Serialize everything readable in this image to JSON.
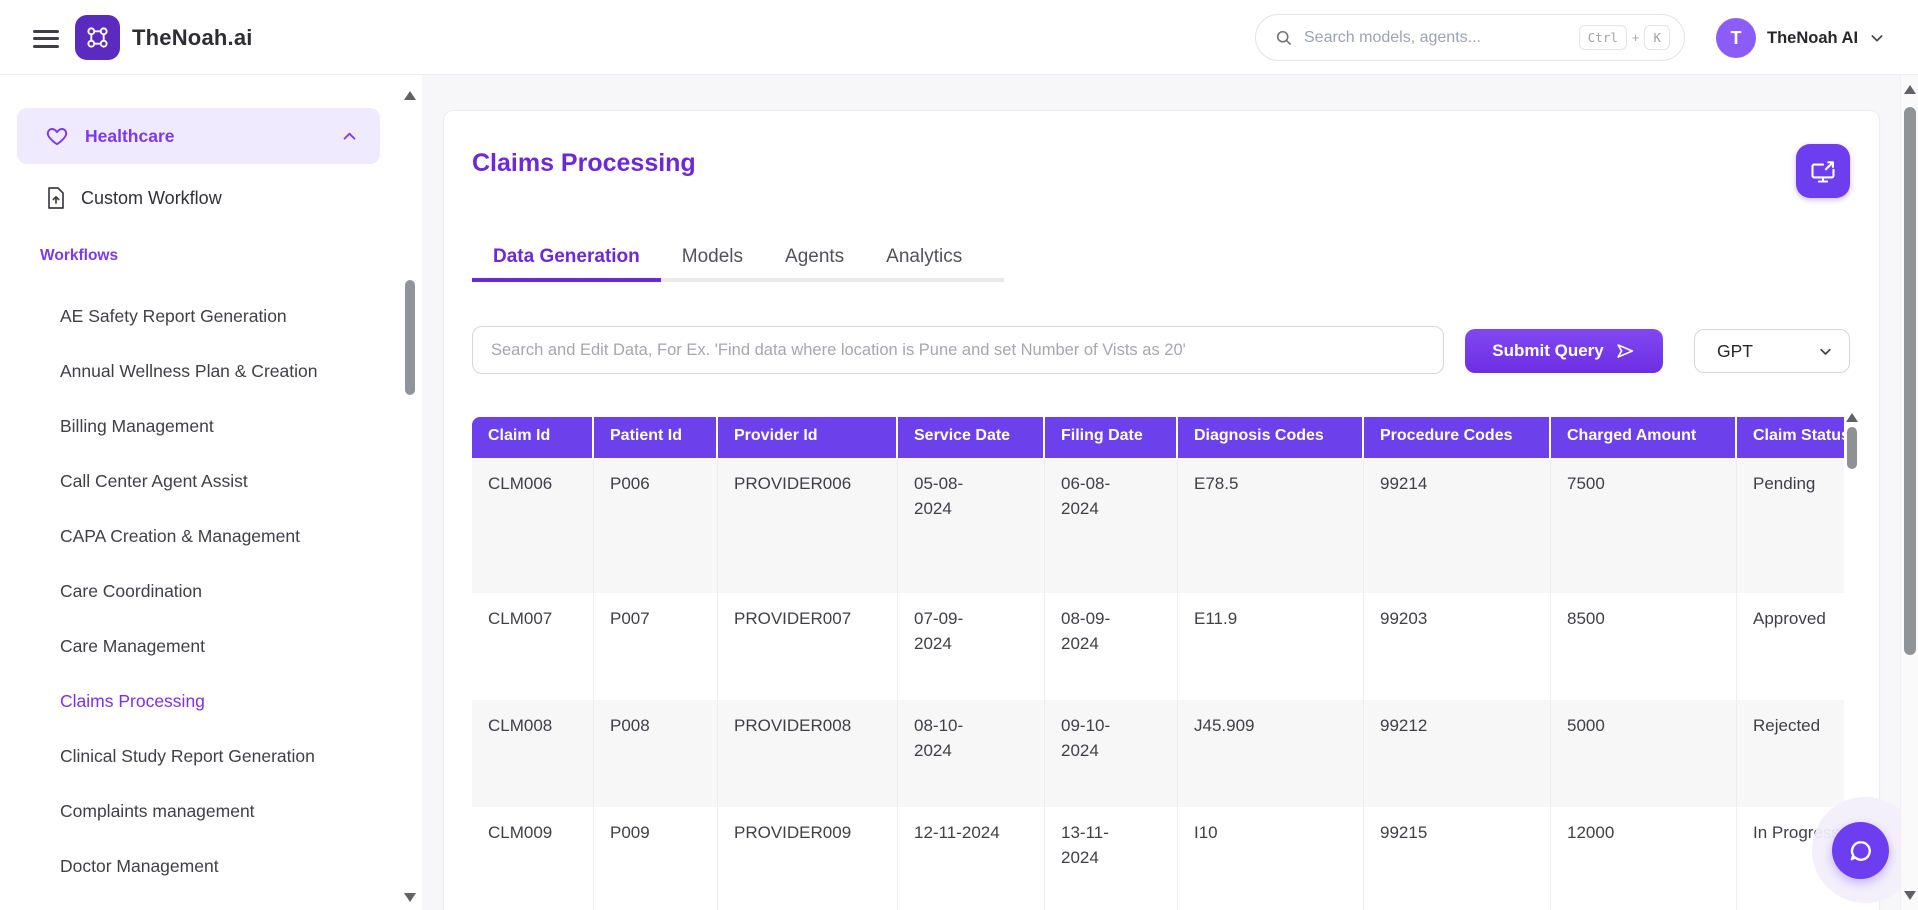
{
  "header": {
    "brand": "TheNoah.ai",
    "search": {
      "placeholder": "Search models, agents...",
      "shortcut_keys": [
        "Ctrl",
        "K"
      ],
      "shortcut_separator": "+"
    },
    "user": {
      "avatar_initial": "T",
      "name": "TheNoah AI"
    }
  },
  "sidebar": {
    "category": "Healthcare",
    "custom_workflow": "Custom Workflow",
    "section_label": "Workflows",
    "items": [
      {
        "label": "AE Safety Report Generation",
        "active": false
      },
      {
        "label": "Annual Wellness Plan & Creation",
        "active": false
      },
      {
        "label": "Billing Management",
        "active": false
      },
      {
        "label": "Call Center Agent Assist",
        "active": false
      },
      {
        "label": "CAPA Creation & Management",
        "active": false
      },
      {
        "label": "Care Coordination",
        "active": false
      },
      {
        "label": "Care Management",
        "active": false
      },
      {
        "label": "Claims Processing",
        "active": true
      },
      {
        "label": "Clinical Study Report Generation",
        "active": false
      },
      {
        "label": "Complaints management",
        "active": false
      },
      {
        "label": "Doctor Management",
        "active": false
      }
    ]
  },
  "main": {
    "title": "Claims Processing",
    "tabs": [
      {
        "label": "Data Generation",
        "active": true
      },
      {
        "label": "Models",
        "active": false
      },
      {
        "label": "Agents",
        "active": false
      },
      {
        "label": "Analytics",
        "active": false
      }
    ],
    "query": {
      "placeholder": "Search and Edit Data, For Ex. 'Find data where location is Pune and set Number of Vists as 20'",
      "submit_label": "Submit Query",
      "model_selected": "GPT"
    },
    "table": {
      "columns": [
        "Claim Id",
        "Patient Id",
        "Provider Id",
        "Service Date",
        "Filing Date",
        "Diagnosis Codes",
        "Procedure Codes",
        "Charged Amount",
        "Claim Status"
      ],
      "rows": [
        [
          "CLM006",
          "P006",
          "PROVIDER006",
          "05-08-\n2024",
          "06-08-\n2024",
          "E78.5",
          "99214",
          "7500",
          "Pending"
        ],
        [
          "CLM007",
          "P007",
          "PROVIDER007",
          "07-09-\n2024",
          "08-09-\n2024",
          "E11.9",
          "99203",
          "8500",
          "Approved"
        ],
        [
          "CLM008",
          "P008",
          "PROVIDER008",
          "08-10-\n2024",
          "09-10-\n2024",
          "J45.909",
          "99212",
          "5000",
          "Rejected"
        ],
        [
          "CLM009",
          "P009",
          "PROVIDER009",
          "12-11-2024",
          "13-11-\n2024",
          "I10",
          "99215",
          "12000",
          "In Progress"
        ]
      ]
    }
  },
  "icons": {
    "hamburger-icon": "three-bars",
    "brand-logo-icon": "network-nodes",
    "search-icon": "magnifier",
    "chevron-down-icon": "v",
    "chevron-up-icon": "^",
    "heart-icon": "heart-outline",
    "document-upload-icon": "file-with-up-arrow",
    "send-icon": "paper-plane-outline",
    "share-screen-icon": "monitor-with-arrow",
    "chat-bubble-icon": "speech-bubble-outline"
  },
  "colors": {
    "accent_purple": "#7c3aed",
    "title_purple": "#6d28d9",
    "table_header_purple": "#6c40ea",
    "logo_purple": "#5b2bbf",
    "avatar_purple": "#8b5cf6",
    "active_item_bg": "#efeafd",
    "row_alt_bg": "#f7f7f8",
    "main_bg": "#f7f7f9"
  }
}
